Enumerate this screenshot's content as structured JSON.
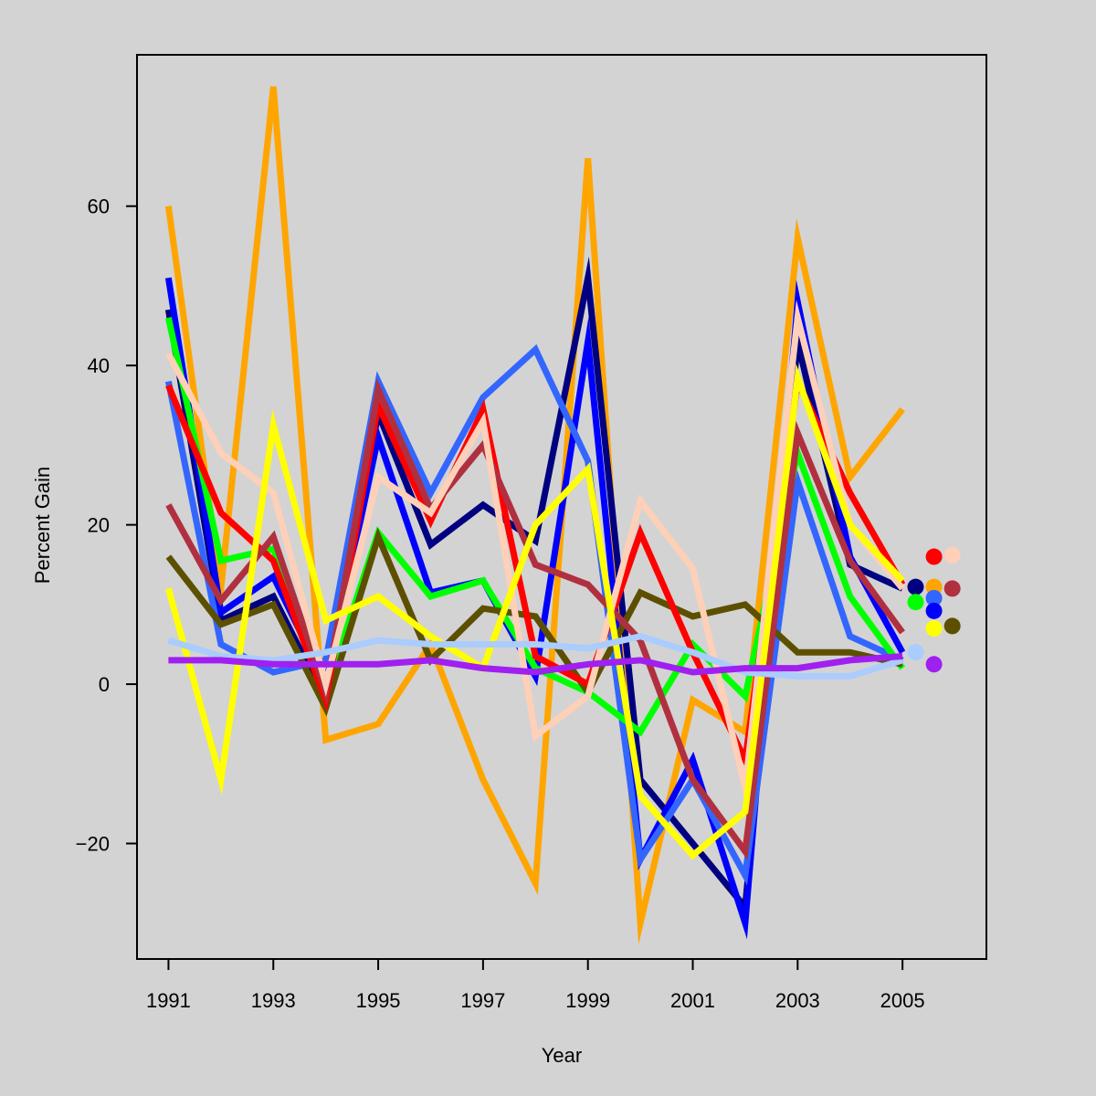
{
  "chart_data": {
    "type": "line",
    "title": "",
    "xlabel": "Year",
    "ylabel": "Percent Gain",
    "xlim": [
      1990.4,
      2006.6
    ],
    "ylim": [
      -34.5,
      79
    ],
    "x_ticks": [
      1991,
      1993,
      1995,
      1997,
      1999,
      2001,
      2003,
      2005
    ],
    "y_ticks": [
      -20,
      0,
      20,
      40,
      60
    ],
    "x": [
      1991,
      1992,
      1993,
      1994,
      1995,
      1996,
      1997,
      1998,
      1999,
      2000,
      2001,
      2002,
      2003,
      2004,
      2005
    ],
    "series": [
      {
        "name": "orange",
        "color": "#FFA500",
        "values": [
          60,
          12,
          75,
          -7,
          -5,
          5,
          -12,
          -25,
          66,
          -30,
          -2,
          -6,
          56,
          26,
          34.5
        ]
      },
      {
        "name": "navy",
        "color": "#000080",
        "values": [
          47,
          8,
          11,
          -2,
          34,
          17.5,
          22.5,
          18,
          51,
          -12,
          -20,
          -28,
          43,
          15,
          12
        ]
      },
      {
        "name": "blue",
        "color": "#0000FF",
        "values": [
          51,
          9,
          13.5,
          0,
          31,
          11.5,
          13,
          1,
          43,
          -22,
          -9.5,
          -30,
          48,
          16,
          4
        ]
      },
      {
        "name": "royal-blue",
        "color": "#3366FF",
        "values": [
          38,
          5,
          1.5,
          3,
          38,
          24,
          36,
          42,
          28,
          -22,
          -12,
          -24,
          25.5,
          6,
          3
        ]
      },
      {
        "name": "green",
        "color": "#00FF00",
        "values": [
          46,
          15.5,
          17,
          -1,
          19,
          11,
          13,
          2,
          -1,
          -6,
          5,
          -1.5,
          29,
          11,
          2
        ]
      },
      {
        "name": "olive",
        "color": "#5C5000",
        "values": [
          16,
          7.5,
          10,
          -3,
          18.5,
          3,
          9.5,
          8.5,
          -1,
          11.5,
          8.5,
          10,
          4,
          4,
          2.5
        ]
      },
      {
        "name": "red",
        "color": "#FF0000",
        "values": [
          37.5,
          21.5,
          15.5,
          -2,
          35,
          20.5,
          34.5,
          3.5,
          0,
          19,
          4,
          -9.5,
          38,
          24,
          12.5
        ]
      },
      {
        "name": "brown",
        "color": "#B03040",
        "values": [
          22.5,
          10.5,
          18.5,
          -1,
          37,
          22,
          30,
          15,
          12.5,
          5.5,
          -12,
          -21,
          31.5,
          15.5,
          6.5
        ]
      },
      {
        "name": "peach",
        "color": "#FFD0B8",
        "values": [
          41.5,
          29,
          24,
          0,
          26,
          21.5,
          33,
          -6.5,
          -1.5,
          23,
          14.5,
          -13,
          46,
          20,
          12
        ]
      },
      {
        "name": "yellow",
        "color": "#FFFF00",
        "values": [
          12,
          -12,
          32.5,
          8,
          11,
          6,
          2,
          20,
          27,
          -14,
          -21.5,
          -16,
          38.5,
          20,
          13
        ]
      },
      {
        "name": "light-blue",
        "color": "#AACCFF",
        "values": [
          5.5,
          3.5,
          3,
          4,
          5.5,
          5,
          5,
          5,
          4.5,
          6,
          4,
          1.5,
          1,
          1,
          3
        ]
      },
      {
        "name": "purple",
        "color": "#A020F0",
        "values": [
          3,
          3,
          2.5,
          2.5,
          2.5,
          3,
          2,
          1.5,
          2.5,
          3,
          1.5,
          2,
          2,
          3,
          3.5
        ]
      }
    ],
    "end_markers": [
      {
        "color": "#FF0000",
        "x": 2005.6,
        "y": 16
      },
      {
        "color": "#FFD0B8",
        "x": 2005.95,
        "y": 16.2
      },
      {
        "color": "#000080",
        "x": 2005.25,
        "y": 12.2
      },
      {
        "color": "#FFA500",
        "x": 2005.6,
        "y": 12.2
      },
      {
        "color": "#B03040",
        "x": 2005.95,
        "y": 12
      },
      {
        "color": "#00FF00",
        "x": 2005.25,
        "y": 10.3
      },
      {
        "color": "#3366FF",
        "x": 2005.6,
        "y": 10.8
      },
      {
        "color": "#0000FF",
        "x": 2005.6,
        "y": 9.2
      },
      {
        "color": "#FFFF00",
        "x": 2005.6,
        "y": 7
      },
      {
        "color": "#5C5000",
        "x": 2005.95,
        "y": 7.3
      },
      {
        "color": "#AACCFF",
        "x": 2005.25,
        "y": 4
      },
      {
        "color": "#A020F0",
        "x": 2005.6,
        "y": 2.5
      }
    ]
  }
}
